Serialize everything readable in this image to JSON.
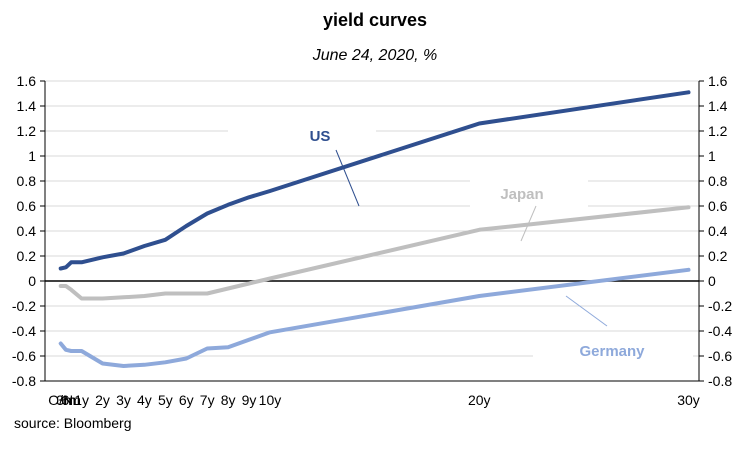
{
  "chart_data": {
    "type": "line",
    "title": "yield curves",
    "subtitle": "June 24, 2020, %",
    "source": "source: Bloomberg",
    "categories": [
      "O/N",
      "3m",
      "6m",
      "1y",
      "2y",
      "3y",
      "4y",
      "5y",
      "6y",
      "7y",
      "8y",
      "9y",
      "10y",
      "20y",
      "30y"
    ],
    "x_positions": [
      0,
      0.25,
      0.5,
      1,
      2,
      3,
      4,
      5,
      6,
      7,
      8,
      9,
      10,
      20,
      30
    ],
    "x_ticks": [
      "O/N",
      "3m",
      "6m",
      "1y",
      "2y",
      "3y",
      "4y",
      "5y",
      "6y",
      "7y",
      "8y",
      "9y",
      "10y",
      "20y",
      "30y"
    ],
    "y_ticks": [
      "-0.8",
      "-0.6",
      "-0.4",
      "-0.2",
      "0",
      "0.2",
      "0.4",
      "0.6",
      "0.8",
      "1",
      "1.2",
      "1.4",
      "1.6"
    ],
    "ylim": [
      -0.8,
      1.6
    ],
    "grid": true,
    "series": [
      {
        "name": "US",
        "color": "#2F4F8F",
        "values": [
          0.1,
          0.11,
          0.15,
          0.15,
          0.19,
          0.22,
          0.28,
          0.33,
          0.44,
          0.54,
          0.61,
          0.67,
          0.72,
          1.26,
          1.51
        ]
      },
      {
        "name": "Japan",
        "color": "#BFBFBF",
        "values": [
          -0.04,
          -0.04,
          -0.07,
          -0.14,
          -0.14,
          -0.13,
          -0.12,
          -0.1,
          -0.1,
          -0.1,
          -0.06,
          -0.02,
          0.02,
          0.41,
          0.59
        ]
      },
      {
        "name": "Germany",
        "color": "#8EA9DB",
        "values": [
          -0.5,
          -0.55,
          -0.56,
          -0.56,
          -0.66,
          -0.68,
          -0.67,
          -0.65,
          -0.62,
          -0.54,
          -0.53,
          -0.47,
          -0.41,
          -0.12,
          0.09
        ]
      }
    ]
  }
}
